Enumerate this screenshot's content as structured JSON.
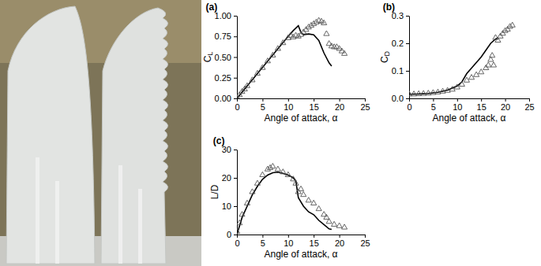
{
  "chart_data": [
    {
      "type": "line",
      "title": "(a)",
      "x_label": "Angle of attack, α",
      "y_label": "CL",
      "xlim": [
        0,
        25
      ],
      "xticks": [
        0,
        5,
        10,
        15,
        20,
        25
      ],
      "ylim": [
        0,
        1.0
      ],
      "yticks": [
        {
          "value": 0,
          "label": "0.00"
        },
        {
          "value": 0.25,
          "label": "0.25"
        },
        {
          "value": 0.5,
          "label": "0.50"
        },
        {
          "value": 0.75,
          "label": "0.75"
        },
        {
          "value": 1.0,
          "label": "1.00"
        }
      ],
      "grid": false,
      "series": [
        {
          "type": "line",
          "color": "#000000",
          "line_style": "solid",
          "x": [
            0,
            2,
            4,
            6,
            8,
            10,
            11,
            12,
            12.5,
            13,
            14,
            15,
            16,
            17,
            18,
            18.5
          ],
          "values": [
            0,
            0.15,
            0.3,
            0.45,
            0.6,
            0.75,
            0.82,
            0.88,
            0.8,
            0.77,
            0.78,
            0.77,
            0.7,
            0.55,
            0.43,
            0.39
          ]
        },
        {
          "type": "scatter",
          "color": "#555555",
          "marker": "triangle",
          "x": [
            0,
            0.5,
            1,
            1.5,
            2,
            3,
            4,
            5,
            6,
            7,
            8,
            9,
            10,
            10.5,
            11,
            11.5,
            12,
            12.5,
            13,
            13.5,
            14,
            14.5,
            15,
            15.5,
            16,
            16.5,
            17,
            17.5,
            18,
            18.5,
            19,
            19.5,
            20,
            20.5,
            21
          ],
          "values": [
            0.01,
            0.04,
            0.08,
            0.11,
            0.15,
            0.22,
            0.3,
            0.37,
            0.45,
            0.52,
            0.6,
            0.67,
            0.73,
            0.76,
            0.74,
            0.76,
            0.75,
            0.77,
            0.8,
            0.83,
            0.86,
            0.88,
            0.9,
            0.92,
            0.94,
            0.93,
            0.91,
            0.78,
            0.66,
            0.63,
            0.62,
            0.62,
            0.6,
            0.57,
            0.54
          ]
        }
      ]
    },
    {
      "type": "line",
      "title": "(b)",
      "x_label": "Angle of attack, α",
      "y_label": "CD",
      "xlim": [
        0,
        25
      ],
      "xticks": [
        0,
        5,
        10,
        15,
        20,
        25
      ],
      "ylim": [
        0,
        0.3
      ],
      "yticks": [
        {
          "value": 0,
          "label": "0.0"
        },
        {
          "value": 0.1,
          "label": "0.1"
        },
        {
          "value": 0.2,
          "label": "0.2"
        },
        {
          "value": 0.3,
          "label": "0.3"
        }
      ],
      "grid": false,
      "series": [
        {
          "type": "line",
          "color": "#000000",
          "line_style": "solid",
          "x": [
            0,
            2,
            4,
            6,
            8,
            10,
            11,
            12,
            13,
            14,
            15,
            16,
            17,
            18,
            18.5
          ],
          "values": [
            0.015,
            0.016,
            0.018,
            0.022,
            0.03,
            0.045,
            0.06,
            0.09,
            0.11,
            0.13,
            0.15,
            0.175,
            0.2,
            0.215,
            0.22
          ]
        },
        {
          "type": "scatter",
          "color": "#555555",
          "marker": "triangle",
          "x": [
            0,
            1,
            2,
            3,
            4,
            5,
            6,
            7,
            8,
            9,
            10,
            11,
            12,
            13,
            14,
            15,
            16,
            16.5,
            17,
            17.3,
            17.6,
            18,
            18.5,
            19,
            19.5,
            20,
            20.5,
            21,
            21.5
          ],
          "values": [
            0.015,
            0.015,
            0.016,
            0.017,
            0.018,
            0.02,
            0.022,
            0.025,
            0.028,
            0.032,
            0.04,
            0.05,
            0.065,
            0.075,
            0.085,
            0.095,
            0.11,
            0.12,
            0.14,
            0.155,
            0.12,
            0.22,
            0.21,
            0.225,
            0.235,
            0.245,
            0.25,
            0.26,
            0.265
          ]
        }
      ]
    },
    {
      "type": "line",
      "title": "(c)",
      "x_label": "Angle of attack, α",
      "y_label": "L/D",
      "xlim": [
        0,
        25
      ],
      "xticks": [
        0,
        5,
        10,
        15,
        20,
        25
      ],
      "ylim": [
        0,
        30
      ],
      "yticks": [
        0,
        10,
        20,
        30
      ],
      "grid": false,
      "series": [
        {
          "type": "line",
          "color": "#000000",
          "line_style": "solid",
          "x": [
            0,
            1,
            2,
            3,
            4,
            5,
            6,
            7,
            8,
            9,
            10,
            11,
            11.5,
            12,
            13,
            14,
            15,
            16,
            17,
            18,
            18.5
          ],
          "values": [
            0,
            6,
            10,
            14,
            17,
            19.5,
            21,
            21.8,
            22,
            21.6,
            21,
            20,
            19,
            13,
            10,
            8,
            7,
            5,
            3.5,
            2,
            1.8
          ]
        },
        {
          "type": "scatter",
          "color": "#555555",
          "marker": "triangle",
          "x": [
            0,
            0.5,
            1,
            2,
            3,
            4,
            5,
            6,
            6.5,
            7,
            8,
            9,
            10,
            11,
            11.5,
            12,
            12.5,
            13,
            14,
            15,
            16,
            17,
            17.5,
            18,
            19,
            20,
            21
          ],
          "values": [
            1,
            4,
            7,
            11,
            15,
            18,
            21,
            23,
            23.5,
            24,
            23,
            22,
            21,
            19.5,
            18,
            15,
            16,
            14,
            12,
            11,
            9,
            7,
            6,
            4.5,
            3.5,
            3,
            2.5
          ]
        }
      ]
    }
  ]
}
